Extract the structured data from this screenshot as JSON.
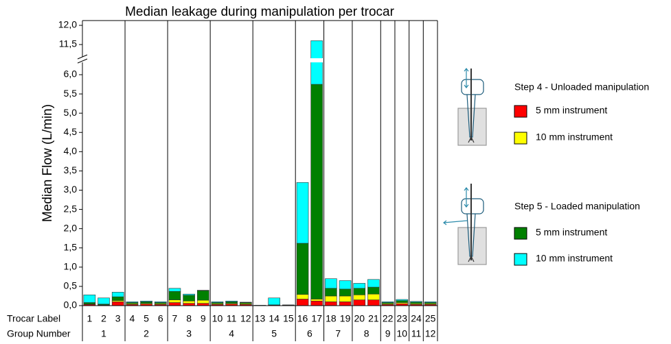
{
  "chart_data": {
    "type": "stacked-bar",
    "title": "Median leakage during manipulation per trocar",
    "y_label": "Median Flow (L/min)",
    "row_labels": [
      "Trocar Label",
      "Group Number"
    ],
    "categories": [
      "1",
      "2",
      "3",
      "4",
      "5",
      "6",
      "7",
      "8",
      "9",
      "10",
      "11",
      "12",
      "13",
      "14",
      "15",
      "16",
      "17",
      "18",
      "19",
      "20",
      "21",
      "22",
      "23",
      "24",
      "25"
    ],
    "groups": [
      "1",
      "2",
      "3",
      "4",
      "5",
      "6",
      "7",
      "8",
      "9",
      "10",
      "11",
      "12"
    ],
    "group_sizes": [
      3,
      3,
      3,
      3,
      3,
      2,
      2,
      2,
      1,
      1,
      1,
      1
    ],
    "ylim": [
      0,
      12
    ],
    "ybreak": [
      6,
      11.5
    ],
    "yticks": [
      {
        "value": 0,
        "label": "0,0"
      },
      {
        "value": 0.5,
        "label": "0,5"
      },
      {
        "value": 1,
        "label": "1,0"
      },
      {
        "value": 1.5,
        "label": "1,5"
      },
      {
        "value": 2,
        "label": "2,0"
      },
      {
        "value": 2.5,
        "label": "2,5"
      },
      {
        "value": 3,
        "label": "3,0"
      },
      {
        "value": 3.5,
        "label": "3,5"
      },
      {
        "value": 4,
        "label": "4,0"
      },
      {
        "value": 4.5,
        "label": "4,5"
      },
      {
        "value": 5,
        "label": "5,0"
      },
      {
        "value": 5.5,
        "label": "5,5"
      },
      {
        "value": 6,
        "label": "6,0"
      },
      {
        "value": 11.5,
        "label": "11,5"
      },
      {
        "value": 12,
        "label": "12,0"
      }
    ],
    "steps": [
      {
        "name": "Step 4 - Unloaded manipulation",
        "series": [
          {
            "name": "5 mm instrument",
            "color": "#ff0000",
            "values": [
              0.03,
              0.01,
              0.1,
              0.03,
              0.04,
              0.03,
              0.08,
              0.06,
              0.06,
              0.03,
              0.04,
              0.03,
              0,
              0.01,
              0.01,
              0.17,
              0.12,
              0.1,
              0.1,
              0.15,
              0.15,
              0.03,
              0.05,
              0.03,
              0.03
            ]
          },
          {
            "name": "10 mm instrument",
            "color": "#ffff00",
            "values": [
              0.01,
              0.01,
              0.03,
              0.02,
              0.02,
              0.02,
              0.07,
              0.06,
              0.08,
              0.02,
              0.02,
              0.02,
              0,
              0,
              0,
              0.12,
              0.05,
              0.15,
              0.15,
              0.13,
              0.15,
              0.02,
              0.03,
              0.02,
              0.02
            ]
          }
        ]
      },
      {
        "name": "Step 5 - Loaded manipulation",
        "series": [
          {
            "name": "5 mm instrument",
            "color": "#008000",
            "values": [
              0.04,
              0.02,
              0.1,
              0.03,
              0.04,
              0.03,
              0.22,
              0.15,
              0.25,
              0.03,
              0.04,
              0.03,
              0,
              0.01,
              0,
              1.33,
              5.58,
              0.2,
              0.18,
              0.17,
              0.18,
              0.03,
              0.05,
              0.04,
              0.03
            ]
          },
          {
            "name": "10 mm instrument",
            "color": "#00ffff",
            "values": [
              0.2,
              0.16,
              0.12,
              0.02,
              0.02,
              0.02,
              0.08,
              0.03,
              0.01,
              0.02,
              0.02,
              0.01,
              0.01,
              0.18,
              0.01,
              1.58,
              5.85,
              0.25,
              0.22,
              0.13,
              0.2,
              0.02,
              0.03,
              0.02,
              0.02
            ]
          }
        ]
      }
    ]
  }
}
